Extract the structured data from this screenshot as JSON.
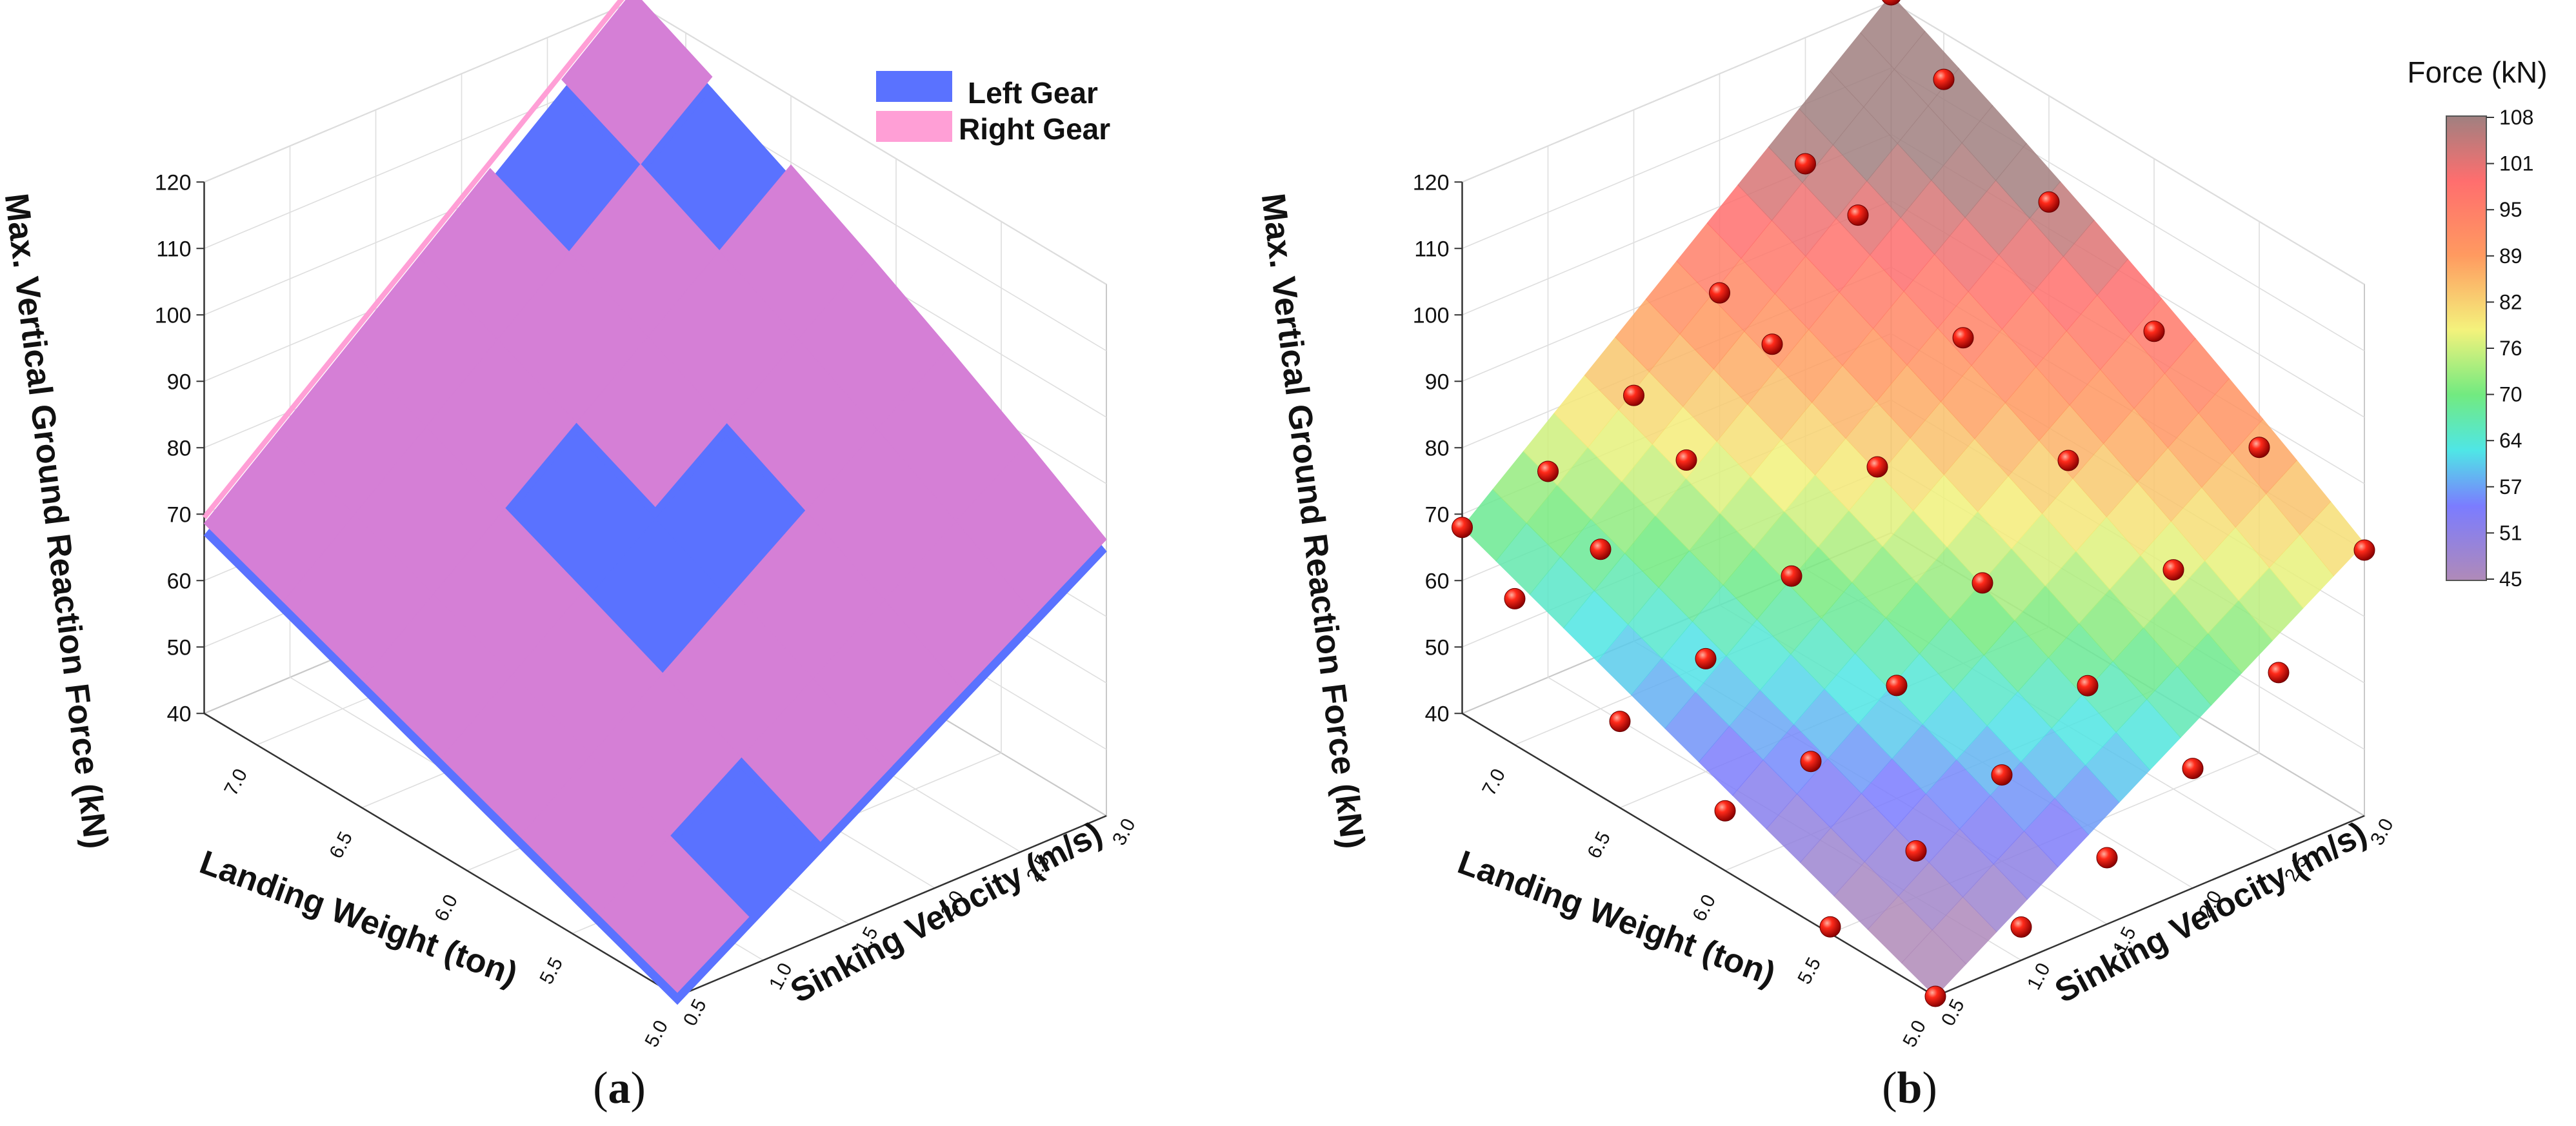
{
  "panels": [
    {
      "label_open": "(",
      "letter": "a",
      "label_close": ")"
    },
    {
      "label_open": "(",
      "letter": "b",
      "label_close": ")"
    }
  ],
  "axes": {
    "zlabel": "Max. Vertical Ground Reaction Force (kN)",
    "xlabel": "Landing Weight (ton)",
    "ylabel": "Sinking Velocity (m/s)",
    "z_ticks": [
      "40",
      "50",
      "60",
      "70",
      "80",
      "90",
      "100",
      "110",
      "120"
    ],
    "x_ticks": [
      "5.0",
      "5.5",
      "6.0",
      "6.5",
      "7.0"
    ],
    "y_ticks": [
      "0.5",
      "1.0",
      "1.5",
      "2.0",
      "2.5",
      "3.0"
    ]
  },
  "legend": {
    "left_gear": "Left Gear",
    "right_gear": "Right Gear",
    "left_color": "#5a72ff",
    "right_color": "#ff9fd6"
  },
  "colorbar": {
    "title": "Force (kN)",
    "ticks": [
      "108",
      "101",
      "95",
      "89",
      "82",
      "76",
      "70",
      "64",
      "57",
      "51",
      "45"
    ],
    "min": 45,
    "max": 108
  },
  "chart_data": [
    {
      "type": "surface",
      "panel": "a",
      "xlabel": "Landing Weight (ton)",
      "ylabel": "Sinking Velocity (m/s)",
      "zlabel": "Max. Vertical Ground Reaction Force (kN)",
      "xlim": [
        5.0,
        7.25
      ],
      "ylim": [
        0.5,
        3.0
      ],
      "zlim": [
        40,
        120
      ],
      "legend_position": "top-right",
      "series": [
        {
          "name": "Left Gear",
          "color": "#5a72ff"
        },
        {
          "name": "Right Gear",
          "color": "#ff9fd6"
        }
      ],
      "corner_values": [
        {
          "x": 5.0,
          "y": 0.5,
          "z": 40
        },
        {
          "x": 7.25,
          "y": 0.5,
          "z": 68
        },
        {
          "x": 5.0,
          "y": 3.0,
          "z": 81
        },
        {
          "x": 7.25,
          "y": 3.0,
          "z": 121
        }
      ]
    },
    {
      "type": "surface-scatter",
      "panel": "b",
      "xlabel": "Landing Weight (ton)",
      "ylabel": "Sinking Velocity (m/s)",
      "zlabel": "Max. Vertical Ground Reaction Force (kN)",
      "xlim": [
        5.0,
        7.25
      ],
      "ylim": [
        0.5,
        3.0
      ],
      "zlim": [
        40,
        120
      ],
      "colorbar_range": [
        45,
        108
      ],
      "points": [
        {
          "x": 5.0,
          "y": 0.5,
          "z": 40
        },
        {
          "x": 5.0,
          "y": 1.0,
          "z": 45
        },
        {
          "x": 5.0,
          "y": 1.5,
          "z": 50
        },
        {
          "x": 5.0,
          "y": 2.0,
          "z": 58
        },
        {
          "x": 5.0,
          "y": 2.5,
          "z": 67
        },
        {
          "x": 5.0,
          "y": 3.0,
          "z": 80
        },
        {
          "x": 5.5,
          "y": 0.5,
          "z": 41
        },
        {
          "x": 5.5,
          "y": 1.0,
          "z": 47
        },
        {
          "x": 5.5,
          "y": 1.5,
          "z": 53
        },
        {
          "x": 5.5,
          "y": 2.0,
          "z": 61
        },
        {
          "x": 5.5,
          "y": 2.5,
          "z": 73
        },
        {
          "x": 5.5,
          "y": 3.0,
          "z": 86
        },
        {
          "x": 6.0,
          "y": 0.5,
          "z": 49
        },
        {
          "x": 6.0,
          "y": 1.0,
          "z": 51
        },
        {
          "x": 6.0,
          "y": 1.5,
          "z": 57
        },
        {
          "x": 6.0,
          "y": 2.0,
          "z": 67
        },
        {
          "x": 6.0,
          "y": 2.5,
          "z": 80
        },
        {
          "x": 6.0,
          "y": 3.0,
          "z": 94
        },
        {
          "x": 6.5,
          "y": 0.5,
          "z": 53
        },
        {
          "x": 6.5,
          "y": 1.0,
          "z": 57
        },
        {
          "x": 6.5,
          "y": 1.5,
          "z": 64
        },
        {
          "x": 6.5,
          "y": 2.0,
          "z": 75
        },
        {
          "x": 6.5,
          "y": 2.5,
          "z": 89
        },
        {
          "x": 6.5,
          "y": 3.0,
          "z": 104
        },
        {
          "x": 7.0,
          "y": 0.5,
          "z": 62
        },
        {
          "x": 7.0,
          "y": 1.0,
          "z": 64
        },
        {
          "x": 7.0,
          "y": 1.5,
          "z": 72
        },
        {
          "x": 7.0,
          "y": 2.0,
          "z": 84
        },
        {
          "x": 7.0,
          "y": 2.5,
          "z": 98
        },
        {
          "x": 7.0,
          "y": 3.0,
          "z": 113
        },
        {
          "x": 7.25,
          "y": 0.5,
          "z": 68
        },
        {
          "x": 7.25,
          "y": 1.0,
          "z": 71
        },
        {
          "x": 7.25,
          "y": 1.5,
          "z": 77
        },
        {
          "x": 7.25,
          "y": 2.0,
          "z": 87
        },
        {
          "x": 7.25,
          "y": 2.5,
          "z": 101
        },
        {
          "x": 7.25,
          "y": 3.0,
          "z": 121
        }
      ]
    }
  ]
}
